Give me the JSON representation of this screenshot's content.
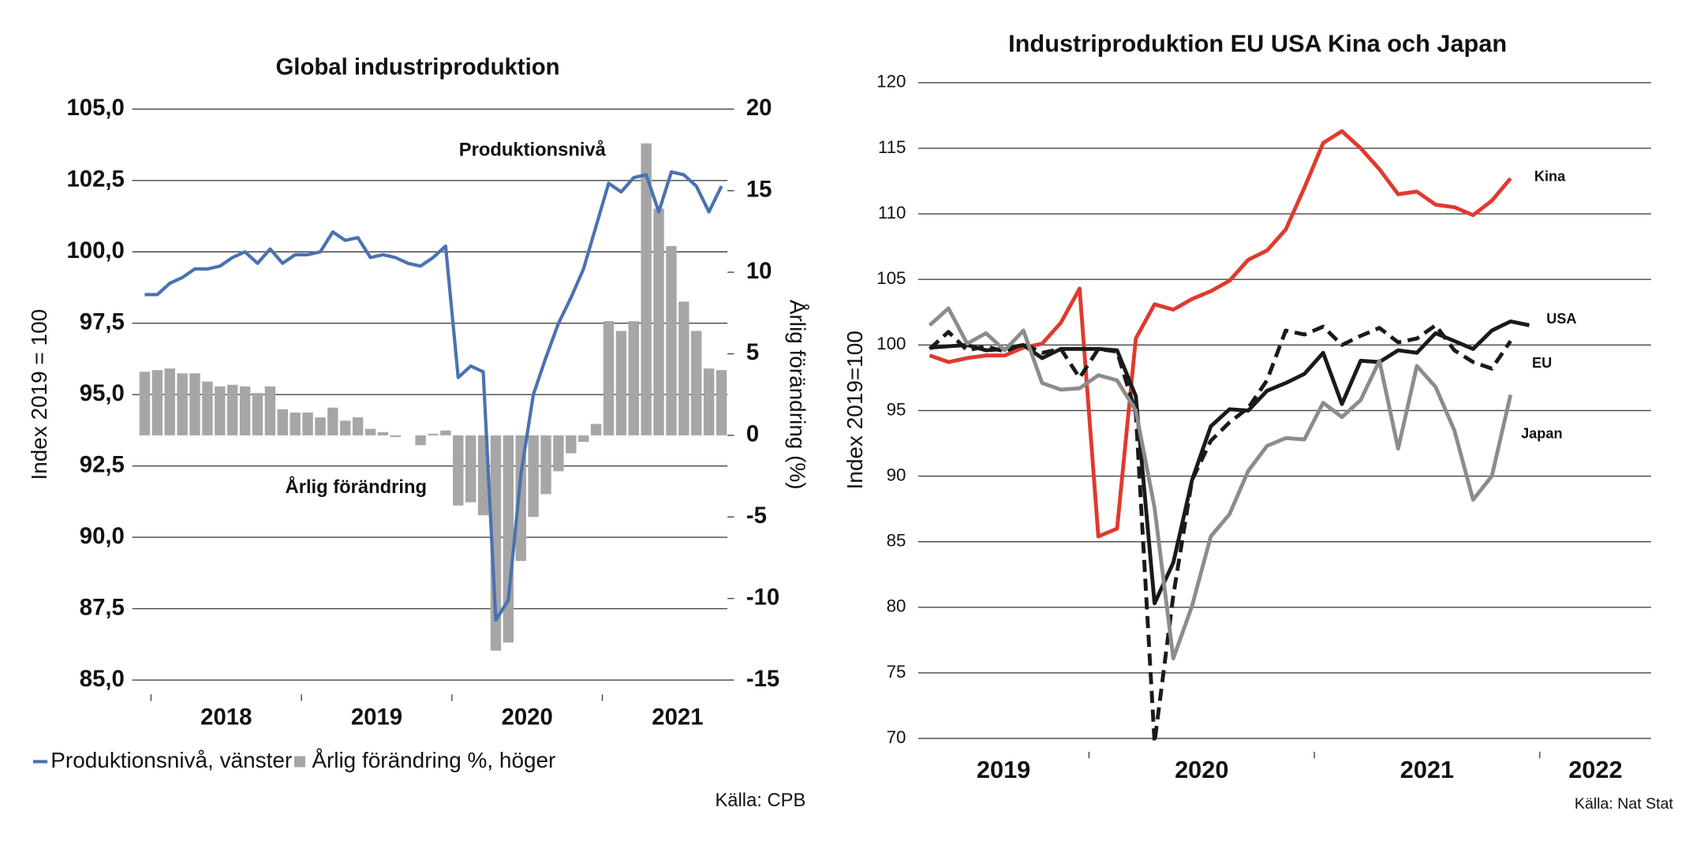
{
  "chart_data": [
    {
      "type": "combo",
      "title": "Global industriproduktion",
      "y_label": "Index 2019 = 100",
      "y2_label": "Årlig förändring (%)",
      "x_labels": [
        "2018",
        "2019",
        "2020",
        "2021"
      ],
      "series": [
        {
          "name": "Produktionsnivå, vänster",
          "type": "line",
          "color": "#4a72b0",
          "values": [
            98.5,
            98.5,
            98.9,
            99.1,
            99.4,
            99.4,
            99.5,
            99.8,
            100.0,
            99.6,
            100.1,
            99.6,
            99.9,
            99.9,
            100.0,
            100.7,
            100.4,
            100.5,
            99.8,
            99.9,
            99.8,
            99.6,
            99.5,
            99.8,
            100.2,
            95.6,
            96.0,
            95.8,
            87.1,
            87.8,
            92.2,
            95.0,
            96.3,
            97.5,
            98.4,
            99.4,
            100.9,
            102.4,
            102.1,
            102.6,
            102.7,
            101.4,
            102.8,
            102.7,
            102.3,
            101.4,
            102.3
          ]
        },
        {
          "name": "Årlig förändring %, höger",
          "type": "bar",
          "axis": "y2",
          "color": "#a6a6a6",
          "values": [
            3.9,
            4.0,
            4.1,
            3.8,
            3.8,
            3.3,
            3.0,
            3.1,
            3.0,
            2.6,
            3.0,
            1.6,
            1.4,
            1.4,
            1.1,
            1.7,
            0.9,
            1.1,
            0.4,
            0.2,
            -0.1,
            0,
            -0.6,
            0.1,
            0.3,
            -4.3,
            -4.1,
            -4.9,
            -13.2,
            -12.7,
            -7.7,
            -5.0,
            -3.6,
            -2.2,
            -1.1,
            -0.4,
            0.7,
            7.0,
            6.4,
            7.0,
            17.9,
            13.9,
            11.6,
            8.2,
            6.4,
            4.1,
            4.0
          ]
        }
      ],
      "annotations": [
        {
          "text": "Produktionsnivå",
          "color": "#4a72b0"
        },
        {
          "text": "Årlig förändring",
          "color": "#8c8c8c"
        }
      ],
      "ylim": [
        85,
        105
      ],
      "yticks": [
        {
          "value": 85,
          "label": "85,0"
        },
        {
          "value": 87.5,
          "label": "87,5"
        },
        {
          "value": 90,
          "label": "90,0"
        },
        {
          "value": 92.5,
          "label": "92,5"
        },
        {
          "value": 95,
          "label": "95,0"
        },
        {
          "value": 97.5,
          "label": "97,5"
        },
        {
          "value": 100,
          "label": "100,0"
        },
        {
          "value": 102.5,
          "label": "102,5"
        },
        {
          "value": 105,
          "label": "105,0"
        }
      ],
      "y2lim": [
        -15,
        20
      ],
      "y2ticks": [
        -15,
        -10,
        -5,
        0,
        5,
        10,
        15,
        20
      ],
      "grid": true,
      "source": "Källa: CPB"
    },
    {
      "type": "line",
      "title": "Industriproduktion EU USA Kina och Japan",
      "y_label": "Index 2019=100",
      "x_labels": [
        "2019",
        "2020",
        "2021",
        "2022"
      ],
      "series": [
        {
          "name": "Kina",
          "color": "#e03a2e",
          "style": "solid",
          "values": [
            99.2,
            98.7,
            99.0,
            99.2,
            99.2,
            99.8,
            100.1,
            101.7,
            104.3,
            85.4,
            86.0,
            100.5,
            103.1,
            102.7,
            103.5,
            104.1,
            104.9,
            106.5,
            107.2,
            108.8,
            112.0,
            115.4,
            116.3,
            115.0,
            113.4,
            111.5,
            111.7,
            110.7,
            110.5,
            109.9,
            111.0,
            112.7,
            null
          ]
        },
        {
          "name": "USA",
          "color": "#1a1a1a",
          "style": "solid",
          "values": [
            99.8,
            99.9,
            100.0,
            99.6,
            99.7,
            100.0,
            99.0,
            99.7,
            99.7,
            99.7,
            99.6,
            96.1,
            80.3,
            83.4,
            89.7,
            93.8,
            95.1,
            95.0,
            96.5,
            97.1,
            97.8,
            99.4,
            95.5,
            98.8,
            98.7,
            99.6,
            99.4,
            100.9,
            100.3,
            99.7,
            101.1,
            101.8,
            101.5
          ]
        },
        {
          "name": "EU",
          "color": "#1a1a1a",
          "style": "dashed",
          "values": [
            99.7,
            101.0,
            99.6,
            99.9,
            99.5,
            100.1,
            99.4,
            99.7,
            97.5,
            99.7,
            99.5,
            94.8,
            69.7,
            80.9,
            89.7,
            92.7,
            94.1,
            95.2,
            97.3,
            101.1,
            100.8,
            101.4,
            100.0,
            100.7,
            101.3,
            100.2,
            100.5,
            101.5,
            99.6,
            98.7,
            98.2,
            100.3,
            null
          ]
        },
        {
          "name": "Japan",
          "color": "#8c8c8c",
          "style": "solid",
          "values": [
            101.5,
            102.8,
            100.1,
            100.9,
            99.6,
            101.1,
            97.1,
            96.6,
            96.7,
            97.7,
            97.3,
            95.0,
            87.6,
            76.1,
            80.1,
            85.4,
            87.1,
            90.4,
            92.3,
            92.9,
            92.8,
            95.6,
            94.5,
            95.8,
            98.8,
            92.1,
            98.4,
            96.8,
            93.5,
            88.2,
            90.0,
            96.2,
            null
          ]
        }
      ],
      "ylim": [
        70,
        120
      ],
      "yticks": [
        70,
        75,
        80,
        85,
        90,
        95,
        100,
        105,
        110,
        115,
        120
      ],
      "grid": true,
      "source": "Källa: Nat Stat"
    }
  ]
}
